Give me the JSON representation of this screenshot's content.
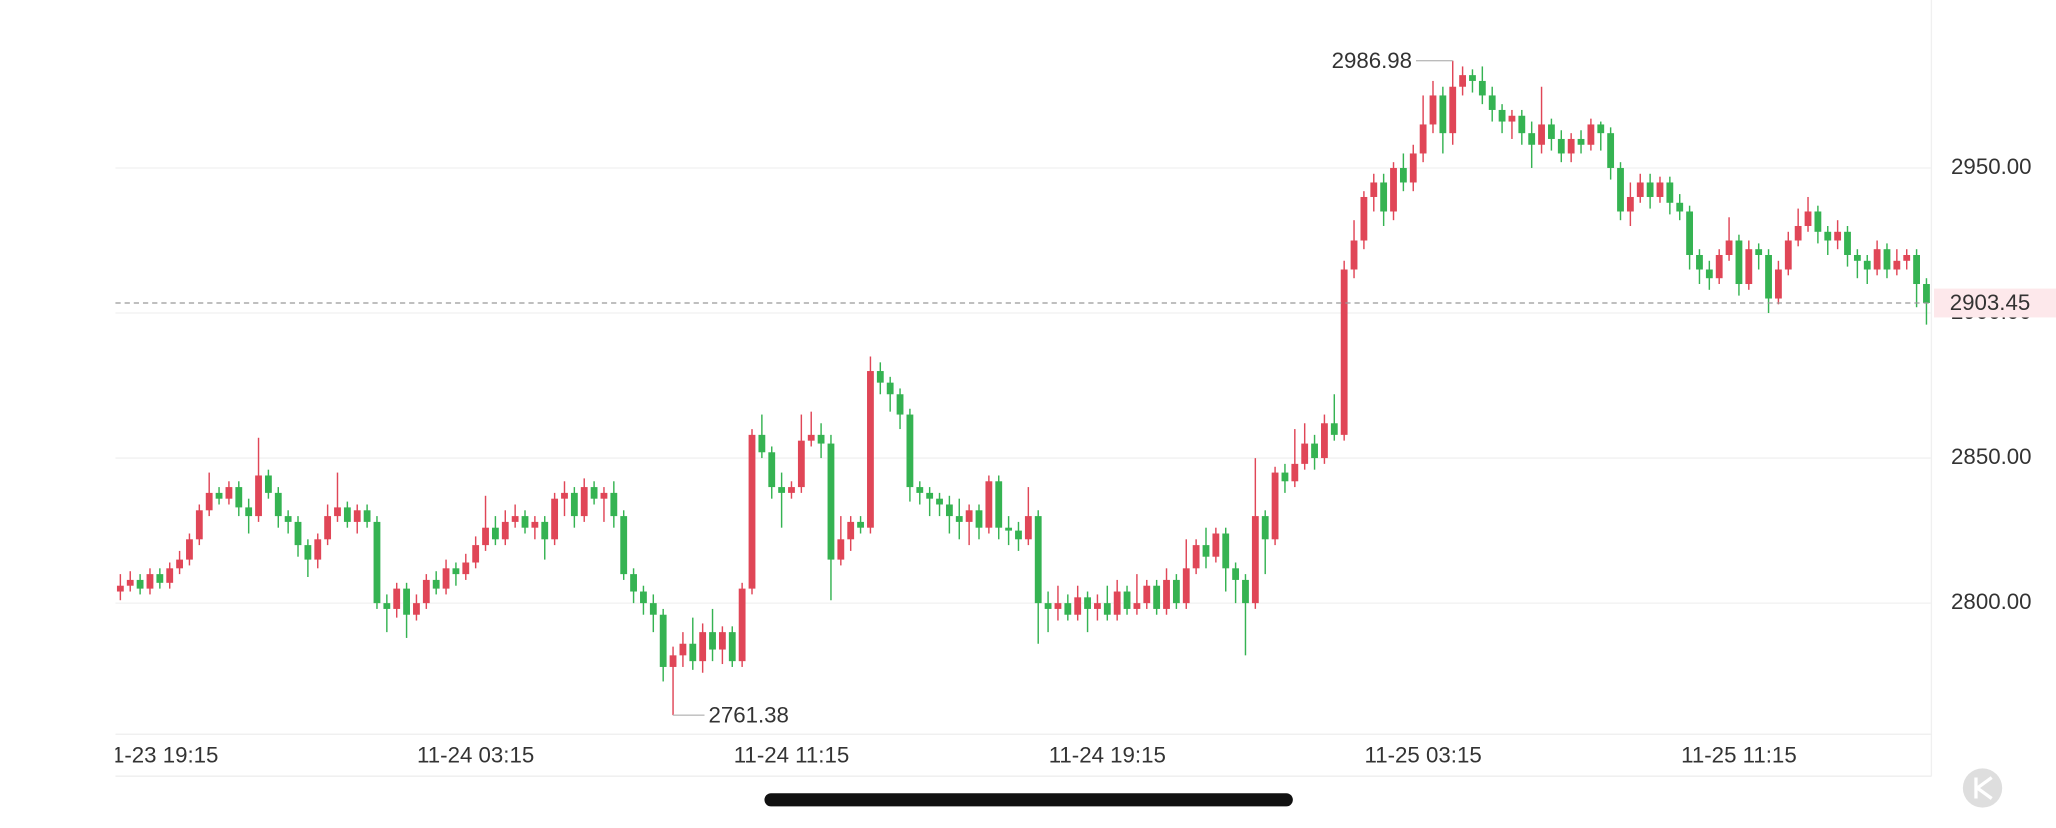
{
  "chart_data": {
    "type": "candlestick",
    "categories": [
      null,
      null,
      null,
      null,
      "11-23 19:15",
      null,
      null,
      null,
      null,
      null,
      null,
      null,
      null,
      null,
      null,
      null,
      null,
      null,
      null,
      null,
      null,
      null,
      null,
      null,
      null,
      null,
      null,
      null,
      null,
      null,
      null,
      null,
      null,
      null,
      null,
      null,
      "11-24 03:15",
      null,
      null,
      null,
      null,
      null,
      null,
      null,
      null,
      null,
      null,
      null,
      null,
      null,
      null,
      null,
      null,
      null,
      null,
      null,
      null,
      null,
      null,
      null,
      null,
      null,
      null,
      null,
      null,
      null,
      null,
      null,
      "11-24 11:15",
      null,
      null,
      null,
      null,
      null,
      null,
      null,
      null,
      null,
      null,
      null,
      null,
      null,
      null,
      null,
      null,
      null,
      null,
      null,
      null,
      null,
      null,
      null,
      null,
      null,
      null,
      null,
      null,
      null,
      null,
      null,
      "11-24 19:15",
      null,
      null,
      null,
      null,
      null,
      null,
      null,
      null,
      null,
      null,
      null,
      null,
      null,
      null,
      null,
      null,
      null,
      null,
      null,
      null,
      null,
      null,
      null,
      null,
      null,
      null,
      null,
      null,
      null,
      null,
      null,
      "11-25 03:15",
      null,
      null,
      null,
      null,
      null,
      null,
      null,
      null,
      null,
      null,
      null,
      null,
      null,
      null,
      null,
      null,
      null,
      null,
      null,
      null,
      null,
      null,
      null,
      null,
      null,
      null,
      null,
      null,
      null,
      null,
      null,
      "11-25 11:15",
      null,
      null,
      null,
      null,
      null,
      null,
      null,
      null,
      null,
      null,
      null,
      null,
      null,
      null,
      null,
      null,
      null,
      null,
      null
    ],
    "open": [
      2804,
      2806,
      2808,
      2805,
      2810,
      2807,
      2812,
      2815,
      2822,
      2832,
      2838,
      2836,
      2840,
      2833,
      2830,
      2844,
      2838,
      2830,
      2828,
      2820,
      2815,
      2822,
      2830,
      2833,
      2828,
      2832,
      2828,
      2800,
      2798,
      2805,
      2796,
      2800,
      2808,
      2805,
      2812,
      2810,
      2814,
      2820,
      2826,
      2822,
      2828,
      2830,
      2826,
      2828,
      2822,
      2836,
      2838,
      2830,
      2840,
      2836,
      2838,
      2830,
      2810,
      2804,
      2800,
      2796,
      2778,
      2782,
      2786,
      2780,
      2790,
      2784,
      2790,
      2780,
      2805,
      2858,
      2852,
      2840,
      2838,
      2840,
      2856,
      2858,
      2855,
      2815,
      2822,
      2828,
      2826,
      2880,
      2876,
      2872,
      2865,
      2840,
      2838,
      2836,
      2834,
      2830,
      2828,
      2832,
      2826,
      2842,
      2826,
      2825,
      2822,
      2830,
      2800,
      2798,
      2800,
      2796,
      2802,
      2798,
      2800,
      2796,
      2804,
      2798,
      2800,
      2806,
      2798,
      2808,
      2800,
      2812,
      2820,
      2816,
      2824,
      2812,
      2808,
      2800,
      2830,
      2822,
      2845,
      2842,
      2848,
      2855,
      2850,
      2862,
      2858,
      2915,
      2925,
      2940,
      2945,
      2935,
      2950,
      2945,
      2955,
      2965,
      2975,
      2962,
      2978,
      2982,
      2980,
      2975,
      2970,
      2966,
      2968,
      2962,
      2958,
      2965,
      2960,
      2955,
      2960,
      2958,
      2965,
      2962,
      2950,
      2935,
      2940,
      2945,
      2940,
      2945,
      2938,
      2935,
      2920,
      2915,
      2912,
      2920,
      2925,
      2910,
      2922,
      2920,
      2905,
      2915,
      2925,
      2930,
      2935,
      2928,
      2925,
      2928,
      2920,
      2918,
      2915,
      2922,
      2915,
      2918,
      2920,
      2910
    ],
    "high": [
      2810,
      2811,
      2810,
      2812,
      2812,
      2814,
      2818,
      2824,
      2834,
      2845,
      2840,
      2842,
      2842,
      2836,
      2857,
      2846,
      2840,
      2832,
      2830,
      2822,
      2824,
      2834,
      2845,
      2835,
      2834,
      2834,
      2830,
      2803,
      2807,
      2807,
      2803,
      2810,
      2811,
      2815,
      2814,
      2817,
      2823,
      2837,
      2830,
      2832,
      2834,
      2832,
      2830,
      2830,
      2838,
      2842,
      2840,
      2843,
      2842,
      2840,
      2842,
      2832,
      2812,
      2806,
      2803,
      2798,
      2785,
      2790,
      2795,
      2793,
      2798,
      2792,
      2792,
      2807,
      2860,
      2865,
      2854,
      2845,
      2842,
      2865,
      2866,
      2862,
      2858,
      2830,
      2830,
      2830,
      2885,
      2883,
      2878,
      2874,
      2867,
      2842,
      2840,
      2838,
      2837,
      2836,
      2834,
      2834,
      2844,
      2844,
      2830,
      2828,
      2840,
      2832,
      2804,
      2806,
      2803,
      2806,
      2804,
      2803,
      2806,
      2808,
      2806,
      2810,
      2808,
      2808,
      2812,
      2810,
      2822,
      2822,
      2826,
      2826,
      2826,
      2814,
      2810,
      2850,
      2832,
      2847,
      2848,
      2860,
      2862,
      2858,
      2865,
      2872,
      2918,
      2932,
      2942,
      2948,
      2948,
      2952,
      2955,
      2958,
      2975,
      2980,
      2978,
      2986.98,
      2985,
      2984,
      2985,
      2978,
      2972,
      2970,
      2970,
      2966,
      2978,
      2967,
      2963,
      2962,
      2963,
      2967,
      2966,
      2964,
      2952,
      2945,
      2948,
      2948,
      2947,
      2947,
      2941,
      2937,
      2922,
      2918,
      2922,
      2933,
      2927,
      2925,
      2924,
      2922,
      2918,
      2928,
      2936,
      2940,
      2937,
      2930,
      2932,
      2930,
      2922,
      2920,
      2925,
      2924,
      2922,
      2922,
      2922,
      2912
    ],
    "low": [
      2801,
      2804,
      2803,
      2803,
      2805,
      2805,
      2810,
      2813,
      2820,
      2830,
      2834,
      2834,
      2830,
      2824,
      2828,
      2836,
      2826,
      2824,
      2816,
      2809,
      2812,
      2820,
      2828,
      2826,
      2824,
      2826,
      2798,
      2790,
      2795,
      2788,
      2794,
      2798,
      2803,
      2803,
      2806,
      2808,
      2812,
      2818,
      2820,
      2820,
      2826,
      2824,
      2822,
      2815,
      2820,
      2830,
      2826,
      2828,
      2834,
      2828,
      2826,
      2808,
      2800,
      2796,
      2790,
      2773,
      2761.38,
      2778,
      2777,
      2776,
      2780,
      2779,
      2778,
      2778,
      2803,
      2850,
      2836,
      2826,
      2836,
      2838,
      2854,
      2850,
      2801,
      2813,
      2818,
      2824,
      2824,
      2872,
      2866,
      2860,
      2835,
      2834,
      2830,
      2830,
      2824,
      2822,
      2820,
      2822,
      2824,
      2822,
      2820,
      2818,
      2820,
      2786,
      2790,
      2794,
      2794,
      2794,
      2790,
      2794,
      2794,
      2794,
      2796,
      2796,
      2798,
      2796,
      2796,
      2798,
      2798,
      2810,
      2812,
      2814,
      2804,
      2800,
      2782,
      2798,
      2810,
      2820,
      2838,
      2840,
      2846,
      2846,
      2848,
      2856,
      2856,
      2912,
      2922,
      2935,
      2930,
      2932,
      2942,
      2942,
      2952,
      2962,
      2955,
      2958,
      2975,
      2976,
      2972,
      2966,
      2962,
      2960,
      2958,
      2950,
      2955,
      2956,
      2952,
      2952,
      2955,
      2956,
      2956,
      2946,
      2932,
      2930,
      2938,
      2936,
      2938,
      2934,
      2932,
      2915,
      2910,
      2908,
      2910,
      2918,
      2906,
      2908,
      2915,
      2900,
      2903,
      2913,
      2923,
      2928,
      2924,
      2920,
      2922,
      2916,
      2912,
      2910,
      2913,
      2912,
      2913,
      2915,
      2902,
      2896
    ],
    "close": [
      2806,
      2808,
      2805,
      2810,
      2807,
      2812,
      2815,
      2822,
      2832,
      2838,
      2836,
      2840,
      2833,
      2830,
      2844,
      2838,
      2830,
      2828,
      2820,
      2815,
      2822,
      2830,
      2833,
      2828,
      2832,
      2828,
      2800,
      2798,
      2805,
      2796,
      2800,
      2808,
      2805,
      2812,
      2810,
      2814,
      2820,
      2826,
      2822,
      2828,
      2830,
      2826,
      2828,
      2822,
      2836,
      2838,
      2830,
      2840,
      2836,
      2838,
      2830,
      2810,
      2804,
      2800,
      2796,
      2778,
      2782,
      2786,
      2780,
      2790,
      2784,
      2790,
      2780,
      2805,
      2858,
      2852,
      2840,
      2838,
      2840,
      2856,
      2858,
      2855,
      2815,
      2822,
      2828,
      2826,
      2880,
      2876,
      2872,
      2865,
      2840,
      2838,
      2836,
      2834,
      2830,
      2828,
      2832,
      2826,
      2842,
      2826,
      2825,
      2822,
      2830,
      2800,
      2798,
      2800,
      2796,
      2802,
      2798,
      2800,
      2796,
      2804,
      2798,
      2800,
      2806,
      2798,
      2808,
      2800,
      2812,
      2820,
      2816,
      2824,
      2812,
      2808,
      2800,
      2830,
      2822,
      2845,
      2842,
      2848,
      2855,
      2850,
      2862,
      2858,
      2915,
      2925,
      2940,
      2945,
      2935,
      2950,
      2945,
      2955,
      2965,
      2975,
      2962,
      2978,
      2982,
      2980,
      2975,
      2970,
      2966,
      2968,
      2962,
      2958,
      2965,
      2960,
      2955,
      2960,
      2958,
      2965,
      2962,
      2950,
      2935,
      2940,
      2945,
      2940,
      2945,
      2938,
      2935,
      2920,
      2915,
      2912,
      2920,
      2925,
      2910,
      2922,
      2920,
      2905,
      2915,
      2925,
      2930,
      2935,
      2928,
      2925,
      2928,
      2920,
      2918,
      2915,
      2922,
      2915,
      2918,
      2920,
      2910,
      2903.45
    ],
    "up_color": "#e04657",
    "down_color": "#35b352",
    "ylim": [
      2754.8,
      3007.9
    ],
    "yticks": [
      {
        "value": 2800,
        "label": "2800.00"
      },
      {
        "value": 2850,
        "label": "2850.00"
      },
      {
        "value": 2900,
        "label": "2900.00"
      },
      {
        "value": 2950,
        "label": "2950.00"
      }
    ],
    "grid": true
  }
}
